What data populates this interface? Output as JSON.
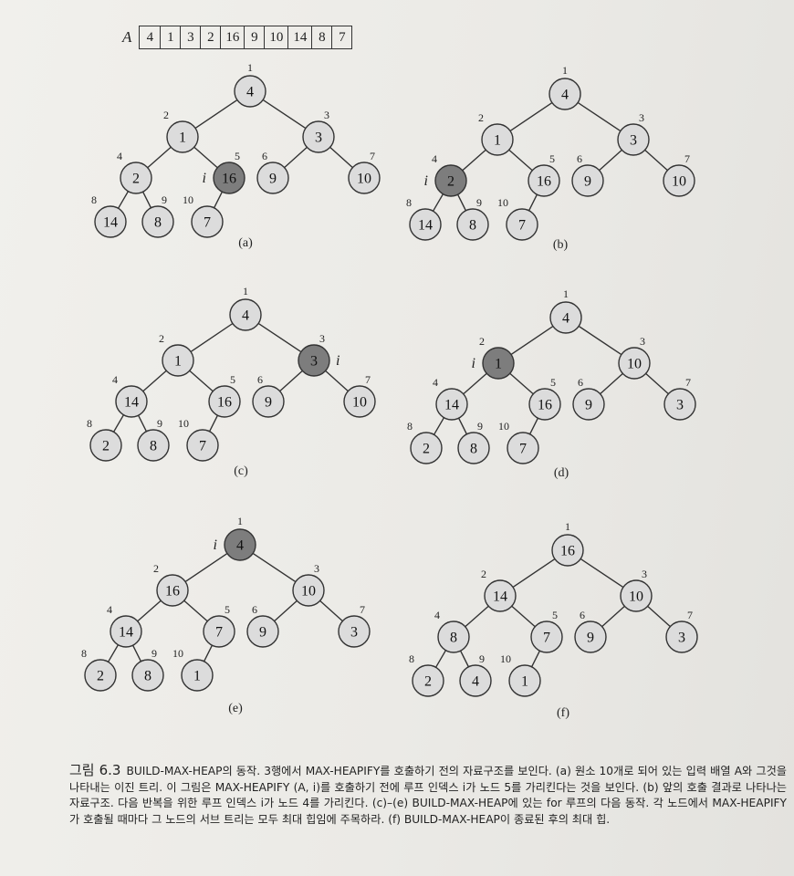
{
  "array": {
    "label": "A",
    "values": [
      "4",
      "1",
      "3",
      "2",
      "16",
      "9",
      "10",
      "14",
      "8",
      "7"
    ]
  },
  "tree_index_labels": [
    "1",
    "2",
    "3",
    "4",
    "5",
    "6",
    "7",
    "8",
    "9",
    "10"
  ],
  "loop_index_label": "i",
  "panels": [
    {
      "label": "(a)",
      "values": [
        "4",
        "1",
        "3",
        "2",
        "16",
        "9",
        "10",
        "14",
        "8",
        "7"
      ],
      "highlight": 5
    },
    {
      "label": "(b)",
      "values": [
        "4",
        "1",
        "3",
        "2",
        "16",
        "9",
        "10",
        "14",
        "8",
        "7"
      ],
      "highlight": 4
    },
    {
      "label": "(c)",
      "values": [
        "4",
        "1",
        "3",
        "14",
        "16",
        "9",
        "10",
        "2",
        "8",
        "7"
      ],
      "highlight": 3
    },
    {
      "label": "(d)",
      "values": [
        "4",
        "1",
        "10",
        "14",
        "16",
        "9",
        "3",
        "2",
        "8",
        "7"
      ],
      "highlight": 2
    },
    {
      "label": "(e)",
      "values": [
        "4",
        "16",
        "10",
        "14",
        "7",
        "9",
        "3",
        "2",
        "8",
        "1"
      ],
      "highlight": 1
    },
    {
      "label": "(f)",
      "values": [
        "16",
        "14",
        "10",
        "8",
        "7",
        "9",
        "3",
        "2",
        "4",
        "1"
      ],
      "highlight": 0
    }
  ],
  "colors": {
    "node_fill": "#dcdcdc",
    "node_highlight": "#7d7d7d",
    "stroke": "#333333"
  },
  "caption": {
    "figure_number": "그림 6.3",
    "text": "BUILD-MAX-HEAP의 동작. 3행에서 MAX-HEAPIFY를 호출하기 전의 자료구조를 보인다. (a) 원소 10개로 되어 있는 입력 배열 A와 그것을 나타내는 이진 트리. 이 그림은 MAX-HEAPIFY (A, i)를 호출하기 전에 루프 인덱스 i가 노드 5를 가리킨다는 것을 보인다. (b) 앞의 호출 결과로 나타나는 자료구조. 다음 반복을 위한 루프 인덱스 i가 노드 4를 가리킨다. (c)–(e) BUILD-MAX-HEAP에 있는 for 루프의 다음 동작. 각 노드에서 MAX-HEAPIFY가 호출될 때마다 그 노드의 서브 트리는 모두 최대 힙임에 주목하라. (f) BUILD-MAX-HEAP이 종료된 후의 최대 힙."
  }
}
